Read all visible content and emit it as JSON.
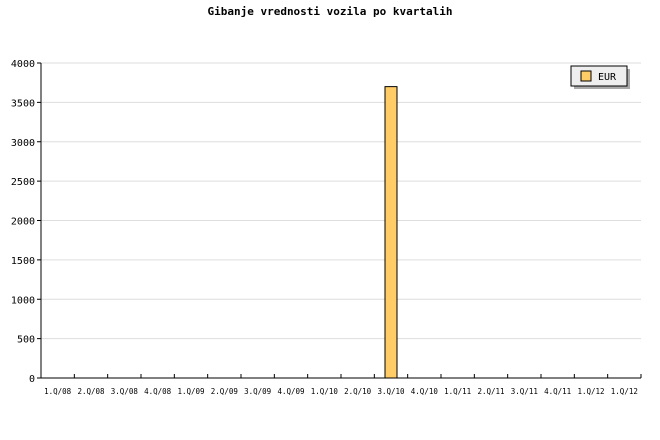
{
  "chart_data": {
    "type": "bar",
    "title": "Gibanje vrednosti vozila po kvartalih",
    "xlabel": "",
    "ylabel": "",
    "ylim": [
      0,
      4000
    ],
    "yticks": [
      0,
      500,
      1000,
      1500,
      2000,
      2500,
      3000,
      3500,
      4000
    ],
    "grid": true,
    "legend_position": "top-right",
    "categories": [
      "1.Q/08",
      "2.Q/08",
      "3.Q/08",
      "4.Q/08",
      "1.Q/09",
      "2.Q/09",
      "3.Q/09",
      "4.Q/09",
      "1.Q/10",
      "2.Q/10",
      "3.Q/10",
      "4.Q/10",
      "1.Q/11",
      "2.Q/11",
      "3.Q/11",
      "4.Q/11",
      "1.Q/12",
      "1.Q/12"
    ],
    "series": [
      {
        "name": "EUR",
        "color": "#ffcc66",
        "values": [
          0,
          0,
          0,
          0,
          0,
          0,
          0,
          0,
          0,
          0,
          3700,
          0,
          0,
          0,
          0,
          0,
          0,
          0
        ]
      }
    ]
  }
}
